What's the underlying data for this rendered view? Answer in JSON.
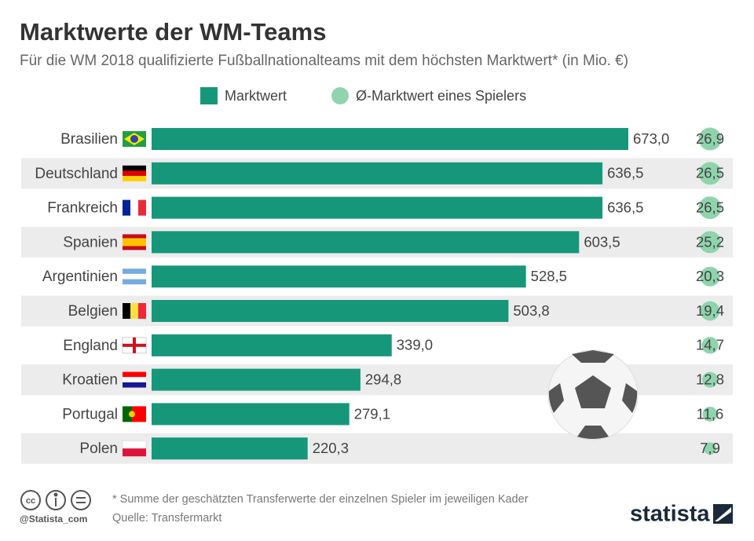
{
  "chart_data": {
    "type": "bar",
    "title": "Marktwerte der WM-Teams",
    "subtitle": "Für die WM 2018 qualifizierte Fußballnationalteams mit dem höchsten Marktwert* (in Mio. €)",
    "categories": [
      "Brasilien",
      "Deutschland",
      "Frankreich",
      "Spanien",
      "Argentinien",
      "Belgien",
      "England",
      "Kroatien",
      "Portugal",
      "Polen"
    ],
    "series": [
      {
        "name": "Marktwert",
        "color": "#17977a",
        "values": [
          673.0,
          636.5,
          636.5,
          603.5,
          528.5,
          503.8,
          339.0,
          294.8,
          279.1,
          220.3
        ],
        "value_labels": [
          "673,0",
          "636,5",
          "636,5",
          "603,5",
          "528,5",
          "503,8",
          "339,0",
          "294,8",
          "279,1",
          "220,3"
        ]
      },
      {
        "name": "Ø-Marktwert eines Spielers",
        "color": "#8fd4ad",
        "values": [
          26.9,
          26.5,
          26.5,
          25.2,
          20.3,
          19.4,
          14.7,
          12.8,
          11.6,
          7.9
        ],
        "value_labels": [
          "26,9",
          "26,5",
          "26,5",
          "25,2",
          "20,3",
          "19,4",
          "14,7",
          "12,8",
          "11,6",
          "7,9"
        ]
      }
    ],
    "footnote": "* Summe der geschätzten Transferwerte der einzelnen Spieler im jeweiligen Kader",
    "source": "Quelle: Transfermarkt",
    "handle": "@Statista_com",
    "brand": "statista"
  }
}
